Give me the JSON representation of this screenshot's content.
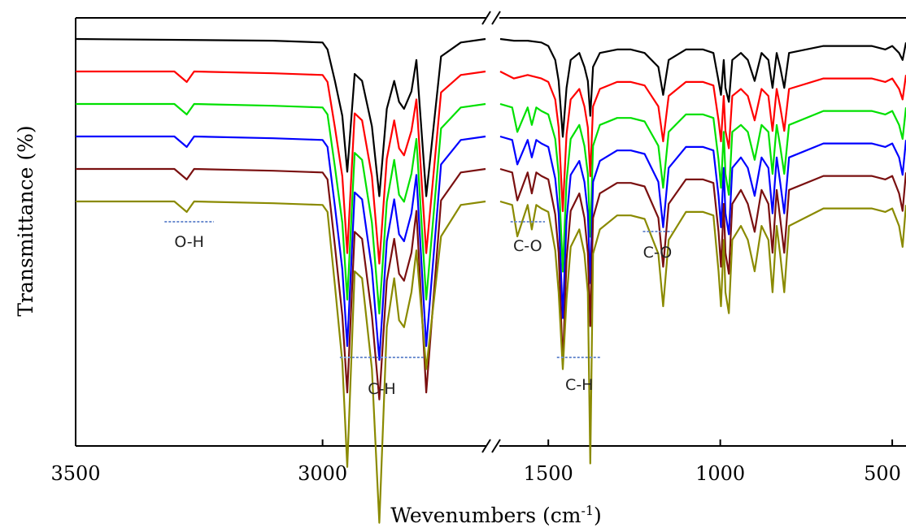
{
  "chart_data": {
    "type": "line",
    "xlabel": "Wevenumbers (cm",
    "xlabel_sup": "-1",
    "xlabel_close": ")",
    "ylabel": "Transmittance (%)",
    "x_axis_broken": true,
    "x_reversed": true,
    "x_segments": [
      {
        "xlim": [
          3500,
          2670
        ],
        "ticks": [
          3500,
          3000
        ]
      },
      {
        "xlim": [
          1640,
          460
        ],
        "ticks": [
          1500,
          1000,
          500
        ]
      }
    ],
    "tick_labels": [
      "3500",
      "3000",
      "1500",
      "1000",
      "500"
    ],
    "y_ticks_shown": false,
    "grid": false,
    "series": [
      {
        "color": "#000000",
        "offset": 0,
        "x": [
          3500,
          3100,
          3000,
          2990,
          2975,
          2960,
          2950,
          2935,
          2920,
          2900,
          2885,
          2870,
          2855,
          2845,
          2835,
          2820,
          2810,
          2790,
          2760,
          2720,
          2670,
          1640,
          1600,
          1560,
          1520,
          1500,
          1480,
          1470,
          1458,
          1447,
          1435,
          1410,
          1395,
          1385,
          1378,
          1370,
          1350,
          1300,
          1260,
          1220,
          1180,
          1166,
          1150,
          1100,
          1050,
          1020,
          1005,
          998,
          990,
          985,
          975,
          965,
          940,
          920,
          900,
          880,
          860,
          848,
          836,
          826,
          814,
          800,
          700,
          560,
          520,
          500,
          480,
          470,
          460
        ],
        "y": [
          0,
          -0.5,
          -1,
          -3,
          -12,
          -22,
          -38,
          -10,
          -12,
          -25,
          -45,
          -20,
          -12,
          -18,
          -20,
          -15,
          -6,
          -45,
          -5,
          -1,
          0,
          0,
          -0.5,
          -0.5,
          -1,
          -2,
          -6,
          -12,
          -28,
          -14,
          -6,
          -4,
          -8,
          -12,
          -22,
          -8,
          -4,
          -3,
          -3,
          -4,
          -8,
          -16,
          -6,
          -3,
          -3,
          -4,
          -12,
          -16,
          -6,
          -14,
          -18,
          -6,
          -4,
          -6,
          -12,
          -4,
          -6,
          -14,
          -4,
          -8,
          -14,
          -4,
          -2,
          -2,
          -3,
          -2,
          -4,
          -6,
          -1
        ]
      },
      {
        "color": "#ff0000",
        "offset": 40,
        "x": [
          3500,
          3300,
          3275,
          3260,
          3100,
          3000,
          2990,
          2975,
          2960,
          2950,
          2935,
          2920,
          2900,
          2885,
          2870,
          2855,
          2845,
          2835,
          2820,
          2810,
          2790,
          2760,
          2720,
          2670,
          1640,
          1600,
          1560,
          1520,
          1500,
          1480,
          1470,
          1458,
          1447,
          1435,
          1410,
          1395,
          1385,
          1378,
          1370,
          1350,
          1300,
          1260,
          1220,
          1180,
          1166,
          1150,
          1100,
          1050,
          1020,
          1005,
          998,
          990,
          985,
          975,
          965,
          940,
          920,
          900,
          880,
          860,
          848,
          836,
          826,
          814,
          800,
          700,
          560,
          520,
          500,
          480,
          470,
          460
        ],
        "y": [
          0,
          0,
          -3,
          0,
          -0.5,
          -1,
          -3,
          -16,
          -30,
          -52,
          -12,
          -14,
          -30,
          -55,
          -25,
          -14,
          -22,
          -24,
          -17,
          -8,
          -52,
          -6,
          -1,
          0,
          0,
          -2,
          -1,
          -2,
          -3,
          -8,
          -16,
          -40,
          -18,
          -8,
          -5,
          -10,
          -16,
          -30,
          -10,
          -5,
          -3,
          -3,
          -4,
          -10,
          -20,
          -7,
          -3,
          -3,
          -4,
          -14,
          -20,
          -7,
          -17,
          -22,
          -7,
          -5,
          -7,
          -14,
          -5,
          -7,
          -17,
          -5,
          -10,
          -17,
          -5,
          -2,
          -2,
          -3,
          -2,
          -5,
          -8,
          -1
        ]
      },
      {
        "color": "#00e000",
        "offset": 80,
        "x": [
          3500,
          3300,
          3275,
          3260,
          3100,
          3000,
          2990,
          2975,
          2960,
          2950,
          2935,
          2920,
          2900,
          2885,
          2870,
          2855,
          2845,
          2835,
          2820,
          2810,
          2790,
          2760,
          2720,
          2670,
          1640,
          1605,
          1590,
          1560,
          1548,
          1535,
          1520,
          1500,
          1480,
          1470,
          1458,
          1447,
          1435,
          1410,
          1395,
          1385,
          1378,
          1370,
          1350,
          1300,
          1260,
          1220,
          1180,
          1166,
          1150,
          1100,
          1050,
          1020,
          1005,
          998,
          990,
          985,
          975,
          965,
          940,
          920,
          900,
          880,
          860,
          848,
          836,
          826,
          814,
          800,
          700,
          560,
          520,
          500,
          480,
          470,
          460
        ],
        "y": [
          0,
          0,
          -3,
          0,
          -0.5,
          -1,
          -3,
          -18,
          -34,
          -56,
          -14,
          -16,
          -34,
          -60,
          -28,
          -16,
          -26,
          -28,
          -20,
          -10,
          -56,
          -7,
          -1,
          0,
          0,
          -1,
          -8,
          -1,
          -6,
          -1,
          -2,
          -3,
          -10,
          -20,
          -48,
          -22,
          -10,
          -6,
          -12,
          -20,
          -38,
          -12,
          -6,
          -4,
          -4,
          -5,
          -12,
          -24,
          -8,
          -3,
          -3,
          -4,
          -16,
          -24,
          -8,
          -20,
          -26,
          -8,
          -6,
          -8,
          -16,
          -6,
          -8,
          -20,
          -6,
          -12,
          -20,
          -6,
          -2,
          -2,
          -3,
          -2,
          -6,
          -10,
          -1
        ]
      },
      {
        "color": "#0000ff",
        "offset": 120,
        "x": [
          3500,
          3300,
          3275,
          3260,
          3100,
          3000,
          2990,
          2975,
          2960,
          2950,
          2935,
          2920,
          2900,
          2885,
          2870,
          2855,
          2845,
          2835,
          2820,
          2810,
          2790,
          2760,
          2720,
          2670,
          1640,
          1605,
          1590,
          1560,
          1548,
          1535,
          1520,
          1500,
          1480,
          1470,
          1458,
          1447,
          1435,
          1410,
          1395,
          1385,
          1378,
          1370,
          1350,
          1300,
          1260,
          1220,
          1180,
          1166,
          1150,
          1100,
          1050,
          1020,
          1005,
          998,
          990,
          985,
          975,
          965,
          940,
          920,
          900,
          880,
          860,
          848,
          836,
          826,
          814,
          800,
          700,
          560,
          520,
          500,
          480,
          470,
          460
        ],
        "y": [
          0,
          0,
          -3,
          0,
          -0.5,
          -1,
          -3,
          -20,
          -38,
          -60,
          -16,
          -18,
          -38,
          -64,
          -30,
          -18,
          -28,
          -30,
          -22,
          -11,
          -60,
          -8,
          -1,
          0,
          0,
          -1,
          -8,
          -1,
          -6,
          -1,
          -2,
          -3,
          -12,
          -22,
          -52,
          -24,
          -11,
          -7,
          -13,
          -22,
          -42,
          -13,
          -7,
          -4,
          -4,
          -5,
          -13,
          -26,
          -9,
          -3,
          -3,
          -4,
          -17,
          -26,
          -9,
          -22,
          -28,
          -9,
          -6,
          -9,
          -17,
          -6,
          -9,
          -22,
          -6,
          -13,
          -22,
          -6,
          -2,
          -2,
          -3,
          -2,
          -6,
          -11,
          -1
        ]
      },
      {
        "color": "#7a1010",
        "offset": 160,
        "x": [
          3500,
          3300,
          3275,
          3260,
          3100,
          3000,
          2990,
          2975,
          2960,
          2950,
          2935,
          2920,
          2900,
          2885,
          2870,
          2855,
          2845,
          2835,
          2820,
          2810,
          2790,
          2760,
          2720,
          2670,
          1640,
          1605,
          1590,
          1560,
          1548,
          1535,
          1520,
          1500,
          1480,
          1470,
          1458,
          1447,
          1435,
          1410,
          1395,
          1385,
          1378,
          1370,
          1350,
          1300,
          1260,
          1220,
          1180,
          1166,
          1150,
          1100,
          1050,
          1020,
          1005,
          998,
          990,
          985,
          975,
          965,
          940,
          920,
          900,
          880,
          860,
          848,
          836,
          826,
          814,
          800,
          700,
          560,
          520,
          500,
          480,
          470,
          460
        ],
        "y": [
          0,
          0,
          -3,
          0,
          -0.5,
          -1,
          -3,
          -22,
          -42,
          -64,
          -18,
          -20,
          -42,
          -66,
          -32,
          -20,
          -30,
          -32,
          -24,
          -12,
          -64,
          -9,
          -1,
          0,
          0,
          -1,
          -9,
          -1,
          -7,
          -1,
          -2,
          -3,
          -13,
          -24,
          -56,
          -26,
          -12,
          -7,
          -14,
          -24,
          -45,
          -14,
          -7,
          -4,
          -4,
          -5,
          -14,
          -28,
          -10,
          -3,
          -3,
          -4,
          -18,
          -28,
          -10,
          -24,
          -30,
          -10,
          -6,
          -10,
          -18,
          -6,
          -10,
          -24,
          -6,
          -14,
          -24,
          -6,
          -2,
          -2,
          -3,
          -2,
          -7,
          -12,
          -1
        ]
      },
      {
        "color": "#8a8a00",
        "offset": 200,
        "x": [
          3500,
          3300,
          3275,
          3260,
          3100,
          3000,
          2990,
          2975,
          2960,
          2950,
          2935,
          2920,
          2900,
          2885,
          2870,
          2855,
          2845,
          2835,
          2820,
          2810,
          2790,
          2760,
          2720,
          2670,
          1640,
          1605,
          1590,
          1560,
          1548,
          1535,
          1520,
          1500,
          1480,
          1470,
          1458,
          1447,
          1435,
          1410,
          1395,
          1385,
          1378,
          1370,
          1350,
          1300,
          1260,
          1220,
          1180,
          1166,
          1150,
          1100,
          1050,
          1020,
          1005,
          998,
          990,
          985,
          975,
          965,
          940,
          920,
          900,
          880,
          860,
          848,
          836,
          826,
          814,
          800,
          700,
          560,
          520,
          500,
          480,
          470,
          460
        ],
        "y": [
          0,
          0,
          -3,
          0,
          -0.5,
          -1,
          -3,
          -24,
          -46,
          -76,
          -20,
          -22,
          -48,
          -92,
          -36,
          -22,
          -34,
          -36,
          -26,
          -14,
          -48,
          -10,
          -1,
          0,
          0,
          -1,
          -10,
          -1,
          -8,
          -1,
          -2,
          -3,
          -14,
          -26,
          -48,
          -28,
          -13,
          -8,
          -15,
          -26,
          -75,
          -15,
          -8,
          -4,
          -4,
          -5,
          -15,
          -30,
          -11,
          -3,
          -3,
          -4,
          -20,
          -30,
          -11,
          -26,
          -32,
          -11,
          -7,
          -11,
          -20,
          -7,
          -11,
          -26,
          -7,
          -15,
          -26,
          -7,
          -2,
          -2,
          -3,
          -2,
          -7,
          -13,
          -1
        ]
      }
    ],
    "annotations": [
      {
        "text": "O-H",
        "x1": 3320,
        "x2": 3220,
        "dash_level": 273,
        "label_level": 297,
        "segment": 0
      },
      {
        "text": "C-H",
        "x1": 2965,
        "x2": 2795,
        "dash_level": 440,
        "label_level": 478,
        "segment": 0
      },
      {
        "text": "C-O",
        "x1": 1610,
        "x2": 1510,
        "dash_level": 273,
        "label_level": 302,
        "segment": 1
      },
      {
        "text": "C-H",
        "x1": 1475,
        "x2": 1345,
        "dash_level": 440,
        "label_level": 473,
        "segment": 1
      },
      {
        "text": "C-O",
        "x1": 1225,
        "x2": 1140,
        "dash_level": 285,
        "label_level": 310,
        "segment": 1
      }
    ],
    "colors": {
      "annotation_dash": "#6f8fd0",
      "axis": "#000000"
    }
  }
}
